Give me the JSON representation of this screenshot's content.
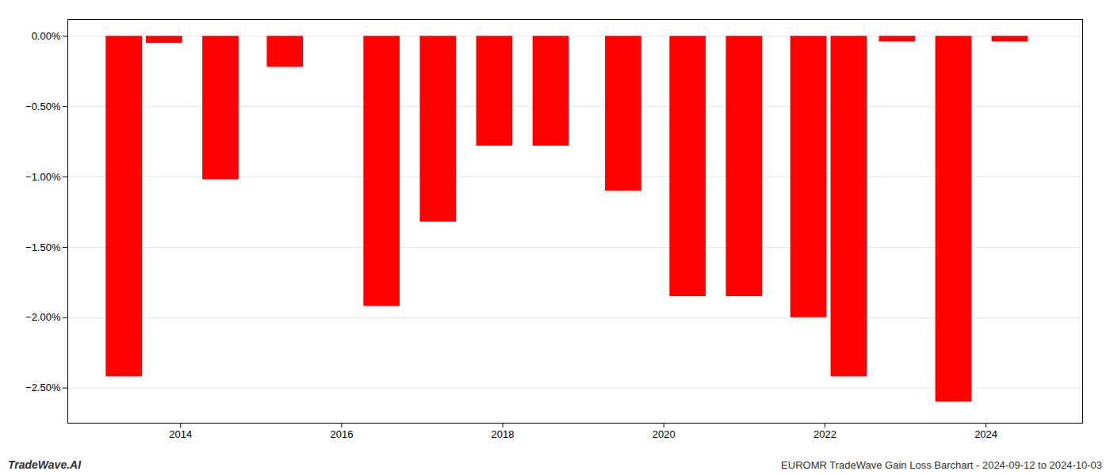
{
  "chart_data": {
    "type": "bar",
    "x": [
      2013.3,
      2013.8,
      2014.5,
      2015.3,
      2016.5,
      2017.2,
      2017.9,
      2018.6,
      2019.5,
      2020.3,
      2021.0,
      2021.8,
      2022.3,
      2022.9,
      2023.6,
      2024.3
    ],
    "values": [
      -2.42,
      -0.05,
      -1.02,
      -0.22,
      -1.92,
      -1.32,
      -0.78,
      -0.78,
      -1.1,
      -1.85,
      -1.85,
      -2.0,
      -2.42,
      -0.04,
      -2.6,
      -0.04
    ],
    "color": "#FF0000",
    "xlim": [
      2012.6,
      2025.2
    ],
    "xticks": [
      2014,
      2016,
      2018,
      2020,
      2022,
      2024
    ],
    "ylim": [
      -2.75,
      0.12
    ],
    "yticks": [
      {
        "value": 0.0,
        "label": "0.00%"
      },
      {
        "value": -0.5,
        "label": "−0.50%"
      },
      {
        "value": -1.0,
        "label": "−1.00%"
      },
      {
        "value": -1.5,
        "label": "−1.50%"
      },
      {
        "value": -2.0,
        "label": "−2.00%"
      },
      {
        "value": -2.5,
        "label": "−2.50%"
      }
    ],
    "grid": true,
    "annotations": [
      "TradeWave.AI",
      "EUROMR TradeWave Gain Loss Barchart - 2024-09-12 to 2024-10-03"
    ]
  }
}
